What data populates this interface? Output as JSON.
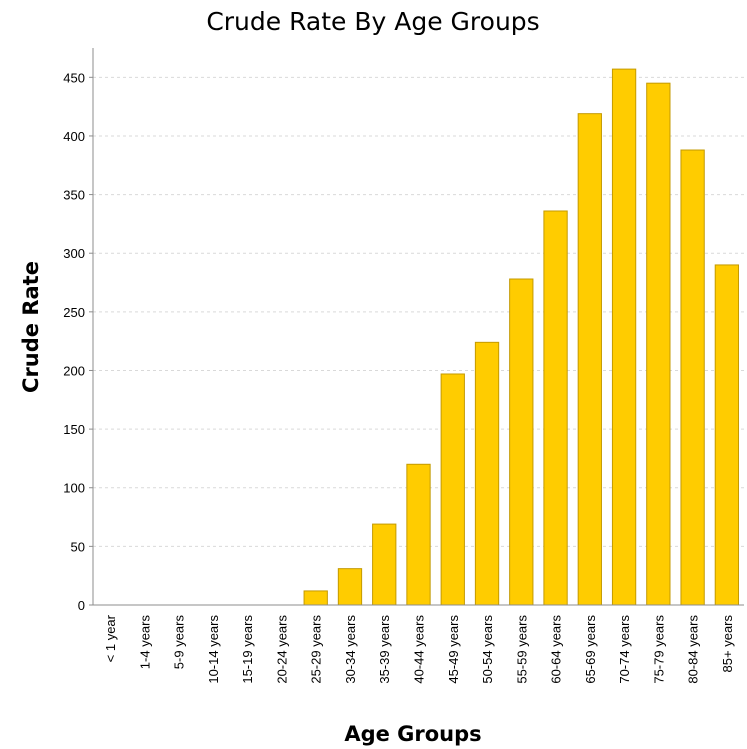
{
  "chart_data": {
    "type": "bar",
    "title": "Crude Rate By Age Groups",
    "xlabel": "Age Groups",
    "ylabel": "Crude Rate",
    "categories": [
      "< 1 year",
      "1-4 years",
      "5-9 years",
      "10-14 years",
      "15-19 years",
      "20-24 years",
      "25-29 years",
      "30-34 years",
      "35-39 years",
      "40-44 years",
      "45-49 years",
      "50-54 years",
      "55-59 years",
      "60-64 years",
      "65-69 years",
      "70-74 years",
      "75-79 years",
      "80-84 years",
      "85+ years"
    ],
    "values": [
      0,
      0,
      0,
      0,
      0,
      0,
      12,
      31,
      69,
      120,
      197,
      224,
      278,
      336,
      419,
      457,
      445,
      388,
      290
    ],
    "ylim": [
      0,
      475
    ],
    "yticks": [
      0,
      50,
      100,
      150,
      200,
      250,
      300,
      350,
      400,
      450
    ],
    "grid": true,
    "bar_color": "#ffcc00",
    "bar_edge_color": "#c49a00"
  }
}
